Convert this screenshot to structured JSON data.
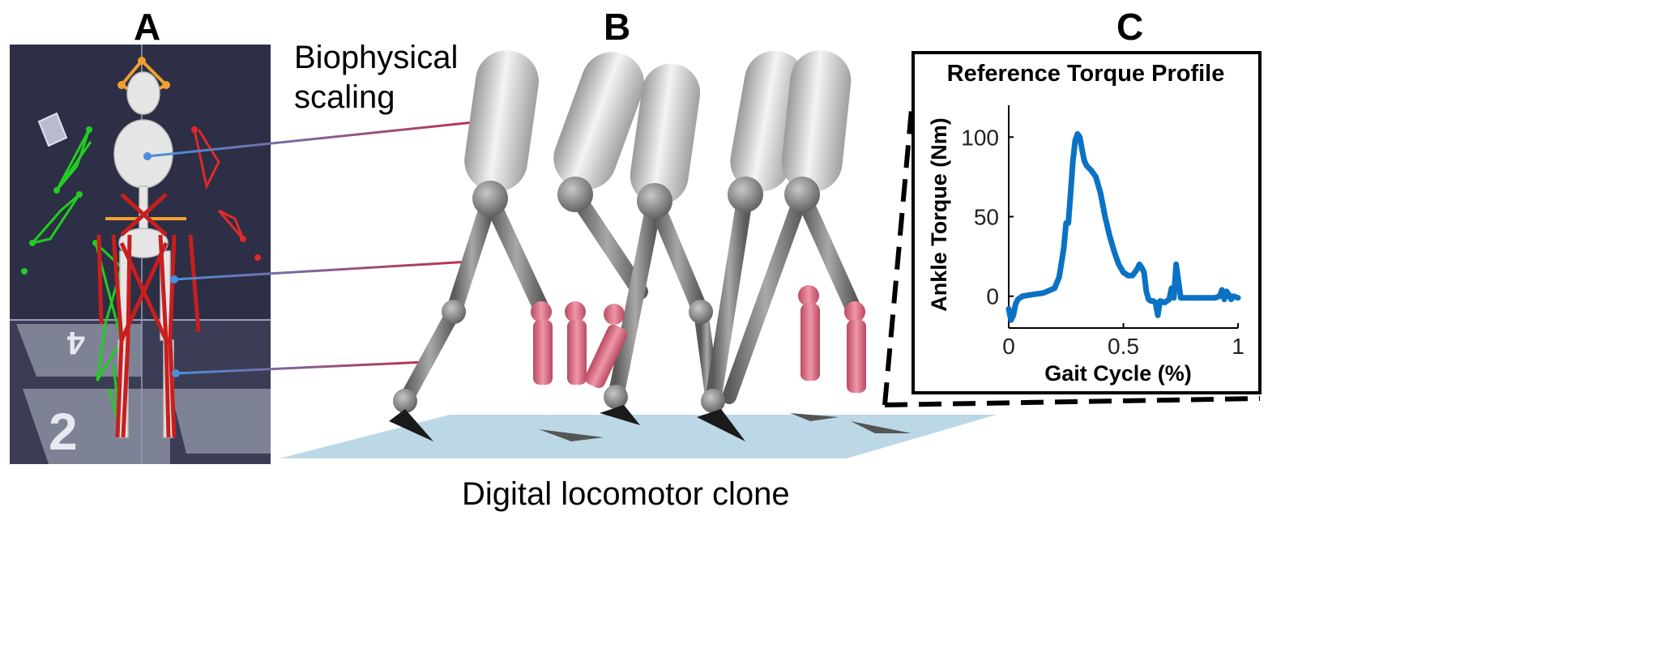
{
  "panels": {
    "a_label": "A",
    "b_label": "B",
    "c_label": "C"
  },
  "annotations": {
    "scaling_line1": "Biophysical",
    "scaling_line2": "scaling",
    "caption": "Digital locomotor clone"
  },
  "colors": {
    "scene_bg": "#2c2f45",
    "muscle": "#c81e1e",
    "marker_green": "#22cc22",
    "marker_orange": "#f0a030",
    "limb_gray": "#7a7a7a",
    "prosthesis_pink": "#d96b80",
    "floor": "#bcd8e6",
    "curve": "#0a72c4",
    "connector": "#8a80b8"
  },
  "chart_data": {
    "type": "line",
    "title": "Reference Torque Profile",
    "xlabel": "Gait Cycle (%)",
    "ylabel": "Ankle Torque (Nm)",
    "xlim": [
      0,
      1
    ],
    "ylim": [
      -20,
      120
    ],
    "xticks": [
      "0",
      "0.5",
      "1"
    ],
    "yticks": [
      "0",
      "50",
      "100"
    ],
    "grid": false,
    "series": [
      {
        "values_x": [
          0.0,
          0.01,
          0.02,
          0.03,
          0.04,
          0.06,
          0.1,
          0.15,
          0.2,
          0.22,
          0.24,
          0.25,
          0.26,
          0.27,
          0.28,
          0.29,
          0.3,
          0.31,
          0.32,
          0.33,
          0.34,
          0.36,
          0.38,
          0.4,
          0.42,
          0.44,
          0.46,
          0.48,
          0.5,
          0.52,
          0.54,
          0.56,
          0.57,
          0.58,
          0.59,
          0.6,
          0.61,
          0.62,
          0.63,
          0.64,
          0.65,
          0.66,
          0.68,
          0.7,
          0.71,
          0.72,
          0.73,
          0.75,
          0.8,
          0.85,
          0.9,
          0.92,
          0.93,
          0.94,
          0.95,
          0.96,
          0.97,
          0.98,
          1.0
        ],
        "values_y": [
          -8,
          -15,
          -12,
          -5,
          -2,
          0,
          1,
          2,
          5,
          12,
          30,
          46,
          46,
          65,
          85,
          98,
          102,
          100,
          92,
          85,
          82,
          79,
          75,
          65,
          50,
          38,
          28,
          20,
          15,
          13,
          13,
          17,
          20,
          18,
          15,
          3,
          -2,
          -3,
          -3,
          -4,
          -12,
          -3,
          -4,
          -2,
          5,
          -1,
          20,
          -1,
          -1,
          -1,
          -1,
          0,
          4,
          -2,
          3,
          1,
          -2,
          0,
          -1
        ]
      }
    ]
  }
}
